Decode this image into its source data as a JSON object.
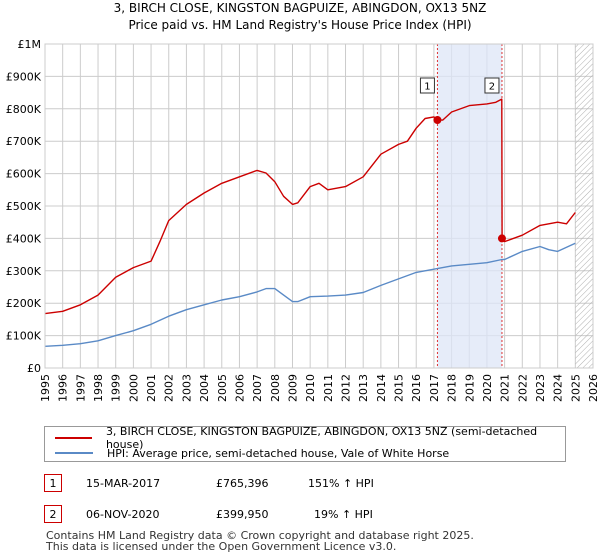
{
  "chart_data": {
    "type": "line",
    "title": "3, BIRCH CLOSE, KINGSTON BAGPUIZE, ABINGDON, OX13 5NZ",
    "subtitle": "Price paid vs. HM Land Registry's House Price Index (HPI)",
    "xlim": [
      1995,
      2026
    ],
    "ylim": [
      0,
      1000000
    ],
    "x_ticks": [
      "1995",
      "1996",
      "1997",
      "1998",
      "1999",
      "2000",
      "2001",
      "2002",
      "2003",
      "2004",
      "2005",
      "2006",
      "2007",
      "2008",
      "2009",
      "2010",
      "2011",
      "2012",
      "2013",
      "2014",
      "2015",
      "2016",
      "2017",
      "2018",
      "2019",
      "2020",
      "2021",
      "2022",
      "2023",
      "2024",
      "2025",
      "2026"
    ],
    "y_ticks": [
      {
        "value": 0,
        "label": "£0"
      },
      {
        "value": 100000,
        "label": "£100K"
      },
      {
        "value": 200000,
        "label": "£200K"
      },
      {
        "value": 300000,
        "label": "£300K"
      },
      {
        "value": 400000,
        "label": "£400K"
      },
      {
        "value": 500000,
        "label": "£500K"
      },
      {
        "value": 600000,
        "label": "£600K"
      },
      {
        "value": 700000,
        "label": "£700K"
      },
      {
        "value": 800000,
        "label": "£800K"
      },
      {
        "value": 900000,
        "label": "£900K"
      },
      {
        "value": 1000000,
        "label": "£1M"
      }
    ],
    "highlight_band": [
      2017.2,
      2020.85
    ],
    "future_hatch_from": 2025.0,
    "series": [
      {
        "name": "3, BIRCH CLOSE, KINGSTON BAGPUIZE, ABINGDON, OX13 5NZ (semi-detached house)",
        "color": "#cc0000",
        "x": [
          1995.0,
          1996.0,
          1997.0,
          1998.0,
          1999.0,
          2000.0,
          2001.0,
          2001.5,
          2002.0,
          2003.0,
          2004.0,
          2005.0,
          2006.0,
          2007.0,
          2007.5,
          2008.0,
          2008.5,
          2009.0,
          2009.3,
          2010.0,
          2010.5,
          2011.0,
          2012.0,
          2013.0,
          2014.0,
          2015.0,
          2015.5,
          2016.0,
          2016.5,
          2017.0,
          2017.2,
          2017.5,
          2018.0,
          2019.0,
          2020.0,
          2020.5,
          2020.84,
          2020.86,
          2021.0,
          2022.0,
          2023.0,
          2024.0,
          2024.5,
          2025.0
        ],
        "y": [
          168000,
          175000,
          195000,
          225000,
          280000,
          310000,
          330000,
          390000,
          455000,
          505000,
          540000,
          570000,
          590000,
          610000,
          602000,
          575000,
          530000,
          505000,
          510000,
          560000,
          570000,
          550000,
          560000,
          590000,
          660000,
          690000,
          700000,
          740000,
          770000,
          775000,
          765396,
          765000,
          790000,
          810000,
          815000,
          820000,
          830000,
          399950,
          390000,
          410000,
          440000,
          450000,
          445000,
          480000
        ]
      },
      {
        "name": "HPI: Average price, semi-detached house, Vale of White Horse",
        "color": "#5a8ac6",
        "x": [
          1995.0,
          1996.0,
          1997.0,
          1998.0,
          1999.0,
          2000.0,
          2001.0,
          2002.0,
          2003.0,
          2004.0,
          2005.0,
          2006.0,
          2007.0,
          2007.5,
          2008.0,
          2008.5,
          2009.0,
          2009.3,
          2010.0,
          2011.0,
          2012.0,
          2013.0,
          2014.0,
          2015.0,
          2016.0,
          2017.0,
          2018.0,
          2019.0,
          2020.0,
          2020.85,
          2021.0,
          2022.0,
          2023.0,
          2023.5,
          2024.0,
          2025.0
        ],
        "y": [
          67000,
          70000,
          75000,
          84000,
          100000,
          115000,
          135000,
          160000,
          180000,
          195000,
          210000,
          220000,
          235000,
          245000,
          245000,
          225000,
          205000,
          205000,
          220000,
          222000,
          225000,
          233000,
          255000,
          275000,
          295000,
          305000,
          315000,
          320000,
          325000,
          335000,
          335000,
          360000,
          375000,
          365000,
          360000,
          385000
        ]
      }
    ],
    "sales": [
      {
        "label": "1",
        "x": 2017.2,
        "y": 765396
      },
      {
        "label": "2",
        "x": 2020.85,
        "y": 399950
      }
    ]
  },
  "legend": {
    "series1": "3, BIRCH CLOSE, KINGSTON BAGPUIZE, ABINGDON, OX13 5NZ (semi-detached house)",
    "series2": "HPI: Average price, semi-detached house, Vale of White Horse"
  },
  "transactions": [
    {
      "num": "1",
      "date": "15-MAR-2017",
      "price": "£765,396",
      "hpi": "151% ↑ HPI"
    },
    {
      "num": "2",
      "date": "06-NOV-2020",
      "price": "£399,950",
      "hpi": "19% ↑ HPI"
    }
  ],
  "footer": {
    "line1": "Contains HM Land Registry data © Crown copyright and database right 2025.",
    "line2": "This data is licensed under the Open Government Licence v3.0."
  }
}
